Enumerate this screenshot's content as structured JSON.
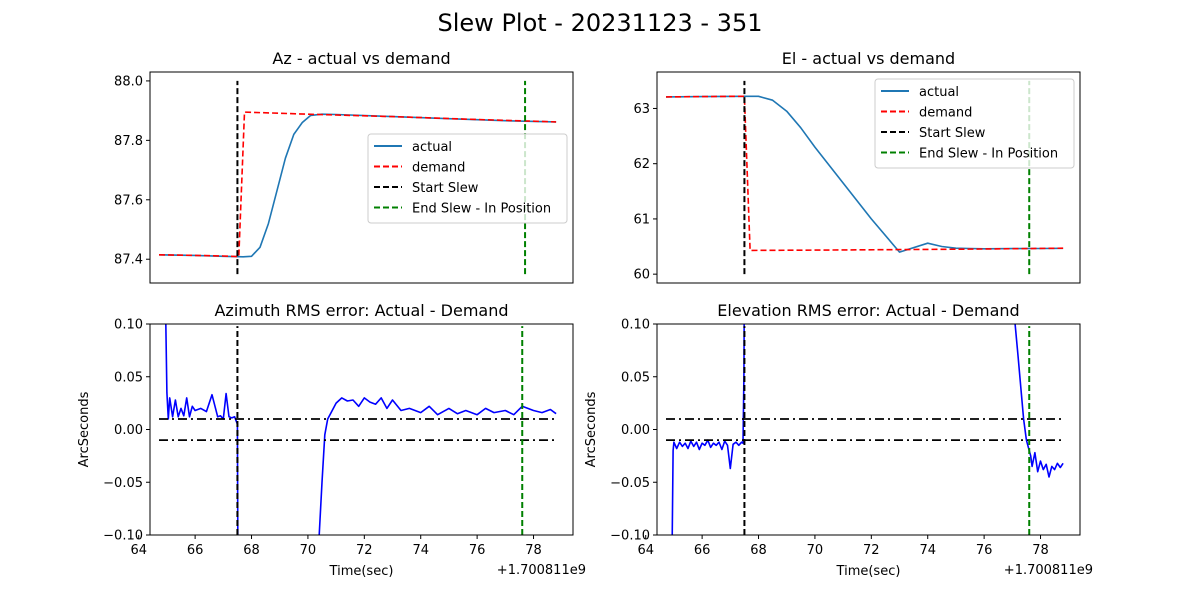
{
  "figure": {
    "title": "Slew Plot - 20231123 - 351"
  },
  "chart_data": [
    {
      "type": "line",
      "title": "Az - actual vs demand",
      "xlabel": "",
      "ylabel": "",
      "xlim": [
        64.4,
        79.4
      ],
      "ylim": [
        87.32,
        88.03
      ],
      "yticks": [
        87.4,
        87.6,
        87.8,
        88.0
      ],
      "ytick_labels": [
        "87.4",
        "87.6",
        "87.8",
        "88.0"
      ],
      "show_xticks": false,
      "legend": {
        "position": "center-right",
        "entries": [
          "actual",
          "demand",
          "Start Slew",
          "End Slew - In Position"
        ]
      },
      "series": [
        {
          "name": "actual",
          "color": "#1f77b4",
          "dash": "solid",
          "x": [
            64.72,
            66.0,
            67.0,
            67.7,
            68.0,
            68.3,
            68.6,
            68.9,
            69.2,
            69.5,
            69.8,
            70.1,
            70.5,
            71.0,
            73.0,
            75.0,
            77.0,
            78.8
          ],
          "y": [
            87.415,
            87.413,
            87.41,
            87.408,
            87.41,
            87.44,
            87.52,
            87.63,
            87.74,
            87.82,
            87.86,
            87.884,
            87.888,
            87.887,
            87.88,
            87.873,
            87.866,
            87.862
          ]
        },
        {
          "name": "demand",
          "color": "#ff0000",
          "dash": "dashed",
          "x": [
            64.72,
            66.0,
            67.0,
            67.55,
            67.75,
            70.0,
            73.0,
            76.0,
            78.8
          ],
          "y": [
            87.415,
            87.413,
            87.411,
            87.409,
            87.895,
            87.888,
            87.88,
            87.87,
            87.862
          ]
        },
        {
          "name": "Start Slew",
          "color": "#000000",
          "dash": "dashed",
          "vline": 67.5,
          "yrange": [
            87.35,
            88.0
          ]
        },
        {
          "name": "End Slew - In Position",
          "color": "#008000",
          "dash": "dashed",
          "vline": 77.7,
          "yrange": [
            87.35,
            88.0
          ]
        }
      ]
    },
    {
      "type": "line",
      "title": "El - actual vs demand",
      "xlabel": "",
      "ylabel": "",
      "xlim": [
        64.4,
        79.4
      ],
      "ylim": [
        59.84,
        63.66
      ],
      "yticks": [
        60,
        61,
        62,
        63
      ],
      "ytick_labels": [
        "60",
        "61",
        "62",
        "63"
      ],
      "show_xticks": false,
      "legend": {
        "position": "upper-right",
        "entries": [
          "actual",
          "demand",
          "Start Slew",
          "End Slew - In Position"
        ]
      },
      "series": [
        {
          "name": "actual",
          "color": "#1f77b4",
          "dash": "solid",
          "x": [
            64.72,
            66.0,
            67.5,
            68.0,
            68.5,
            69.0,
            69.5,
            70.0,
            71.0,
            72.0,
            73.0,
            74.0,
            74.5,
            75.0,
            75.5,
            76.0,
            77.0,
            78.0,
            78.8
          ],
          "y": [
            63.21,
            63.215,
            63.22,
            63.22,
            63.15,
            62.95,
            62.65,
            62.3,
            61.65,
            61.0,
            60.4,
            60.56,
            60.5,
            60.47,
            60.465,
            60.46,
            60.462,
            60.465,
            60.468
          ]
        },
        {
          "name": "demand",
          "color": "#ff0000",
          "dash": "dashed",
          "x": [
            64.72,
            66.0,
            67.2,
            67.5,
            67.7,
            70.0,
            73.0,
            76.0,
            78.8
          ],
          "y": [
            63.21,
            63.215,
            63.22,
            63.22,
            60.43,
            60.435,
            60.445,
            60.455,
            60.47
          ]
        },
        {
          "name": "Start Slew",
          "color": "#000000",
          "dash": "dashed",
          "vline": 67.5,
          "yrange": [
            60.0,
            63.5
          ]
        },
        {
          "name": "End Slew - In Position",
          "color": "#008000",
          "dash": "dashed",
          "vline": 77.6,
          "yrange": [
            60.0,
            63.5
          ]
        }
      ]
    },
    {
      "type": "line",
      "title": "Azimuth RMS error: Actual - Demand",
      "xlabel": "Time(sec)",
      "ylabel": "ArcSeconds",
      "x_offset_label": "+1.700811e9",
      "xlim": [
        64.4,
        79.4
      ],
      "ylim": [
        -0.1,
        0.1
      ],
      "xticks": [
        64,
        66,
        68,
        70,
        72,
        74,
        76,
        78
      ],
      "xtick_labels": [
        "64",
        "66",
        "68",
        "70",
        "72",
        "74",
        "76",
        "78"
      ],
      "yticks": [
        -0.1,
        -0.05,
        0.0,
        0.05,
        0.1
      ],
      "ytick_labels": [
        "−0.10",
        "−0.05",
        "0.00",
        "0.05",
        "0.10"
      ],
      "show_xticks": true,
      "series": [
        {
          "color": "#0000ff",
          "dash": "solid",
          "x": [
            64.95,
            65.0,
            65.05,
            65.1,
            65.2,
            65.3,
            65.4,
            65.5,
            65.6,
            65.7,
            65.8,
            65.9,
            66.0,
            66.2,
            66.4,
            66.6,
            66.8,
            66.9,
            67.0,
            67.1,
            67.2,
            67.3,
            67.4,
            67.5,
            67.52
          ],
          "y": [
            0.12,
            0.035,
            0.01,
            0.03,
            0.012,
            0.028,
            0.012,
            0.02,
            0.013,
            0.03,
            0.012,
            0.022,
            0.018,
            0.02,
            0.017,
            0.033,
            0.012,
            0.013,
            0.01,
            0.034,
            0.012,
            0.011,
            0.012,
            0.005,
            -0.15
          ]
        },
        {
          "color": "#0000ff",
          "dash": "solid",
          "x": [
            70.35,
            70.4,
            70.5,
            70.6,
            70.7,
            70.8,
            71.0,
            71.2,
            71.4,
            71.6,
            71.8,
            72.0,
            72.2,
            72.4,
            72.6,
            72.8,
            73.0,
            73.3,
            73.6,
            74.0,
            74.3,
            74.6,
            75.0,
            75.3,
            75.6,
            76.0,
            76.3,
            76.6,
            77.0,
            77.3,
            77.6,
            78.0,
            78.3,
            78.6,
            78.8
          ],
          "y": [
            -0.15,
            -0.1,
            -0.05,
            -0.005,
            0.01,
            0.015,
            0.025,
            0.03,
            0.027,
            0.028,
            0.022,
            0.03,
            0.026,
            0.024,
            0.03,
            0.02,
            0.028,
            0.018,
            0.02,
            0.016,
            0.022,
            0.014,
            0.02,
            0.015,
            0.018,
            0.014,
            0.02,
            0.016,
            0.018,
            0.014,
            0.022,
            0.018,
            0.016,
            0.019,
            0.015
          ]
        },
        {
          "name": "rms-upper",
          "color": "#000000",
          "dash": "dashdot",
          "x": [
            64.72,
            78.8
          ],
          "y": [
            0.01,
            0.01
          ]
        },
        {
          "name": "rms-lower",
          "color": "#000000",
          "dash": "dashdot",
          "x": [
            64.72,
            78.8
          ],
          "y": [
            -0.01,
            -0.01
          ]
        },
        {
          "name": "Start Slew",
          "color": "#000000",
          "dash": "dashed",
          "vline": 67.5,
          "yrange": [
            -0.1,
            0.098
          ]
        },
        {
          "name": "End Slew - In Position",
          "color": "#008000",
          "dash": "dashed",
          "vline": 77.6,
          "yrange": [
            -0.1,
            0.098
          ]
        }
      ]
    },
    {
      "type": "line",
      "title": "Elevation RMS error: Actual - Demand",
      "xlabel": "Time(sec)",
      "ylabel": "ArcSeconds",
      "x_offset_label": "+1.700811e9",
      "xlim": [
        64.4,
        79.4
      ],
      "ylim": [
        -0.1,
        0.1
      ],
      "xticks": [
        64,
        66,
        68,
        70,
        72,
        74,
        76,
        78
      ],
      "xtick_labels": [
        "64",
        "66",
        "68",
        "70",
        "72",
        "74",
        "76",
        "78"
      ],
      "yticks": [
        -0.1,
        -0.05,
        0.0,
        0.05,
        0.1
      ],
      "ytick_labels": [
        "−0.10",
        "−0.05",
        "0.00",
        "0.05",
        "0.10"
      ],
      "show_xticks": true,
      "series": [
        {
          "color": "#0000ff",
          "dash": "solid",
          "x": [
            64.92,
            64.97,
            65.0,
            65.1,
            65.2,
            65.3,
            65.4,
            65.5,
            65.6,
            65.7,
            65.8,
            65.9,
            66.0,
            66.1,
            66.2,
            66.3,
            66.4,
            66.5,
            66.6,
            66.7,
            66.8,
            66.9,
            67.0,
            67.1,
            67.2,
            67.3,
            67.4,
            67.45,
            67.48,
            67.5
          ],
          "y": [
            -0.15,
            -0.02,
            -0.012,
            -0.018,
            -0.012,
            -0.016,
            -0.013,
            -0.018,
            -0.011,
            -0.016,
            -0.012,
            -0.019,
            -0.013,
            -0.015,
            -0.01,
            -0.017,
            -0.013,
            -0.015,
            -0.012,
            -0.019,
            -0.011,
            -0.015,
            -0.037,
            -0.014,
            -0.012,
            -0.015,
            -0.012,
            -0.013,
            0.05,
            0.15
          ]
        },
        {
          "color": "#0000ff",
          "dash": "solid",
          "x": [
            77.05,
            77.1,
            77.2,
            77.3,
            77.4,
            77.45,
            77.5,
            77.6,
            77.65,
            77.7,
            77.8,
            77.9,
            78.0,
            78.1,
            78.2,
            78.3,
            78.4,
            78.5,
            78.6,
            78.7,
            78.8
          ],
          "y": [
            0.12,
            0.1,
            0.07,
            0.04,
            0.01,
            0.0,
            -0.01,
            -0.02,
            -0.025,
            -0.035,
            -0.022,
            -0.04,
            -0.03,
            -0.038,
            -0.033,
            -0.045,
            -0.035,
            -0.038,
            -0.032,
            -0.036,
            -0.032
          ]
        },
        {
          "name": "rms-upper",
          "color": "#000000",
          "dash": "dashdot",
          "x": [
            64.72,
            78.8
          ],
          "y": [
            0.01,
            0.01
          ]
        },
        {
          "name": "rms-lower",
          "color": "#000000",
          "dash": "dashdot",
          "x": [
            64.72,
            78.8
          ],
          "y": [
            -0.01,
            -0.01
          ]
        },
        {
          "name": "Start Slew",
          "color": "#000000",
          "dash": "dashed",
          "vline": 67.5,
          "yrange": [
            -0.1,
            0.098
          ]
        },
        {
          "name": "End Slew - In Position",
          "color": "#008000",
          "dash": "dashed",
          "vline": 77.6,
          "yrange": [
            -0.1,
            0.098
          ]
        }
      ]
    }
  ]
}
